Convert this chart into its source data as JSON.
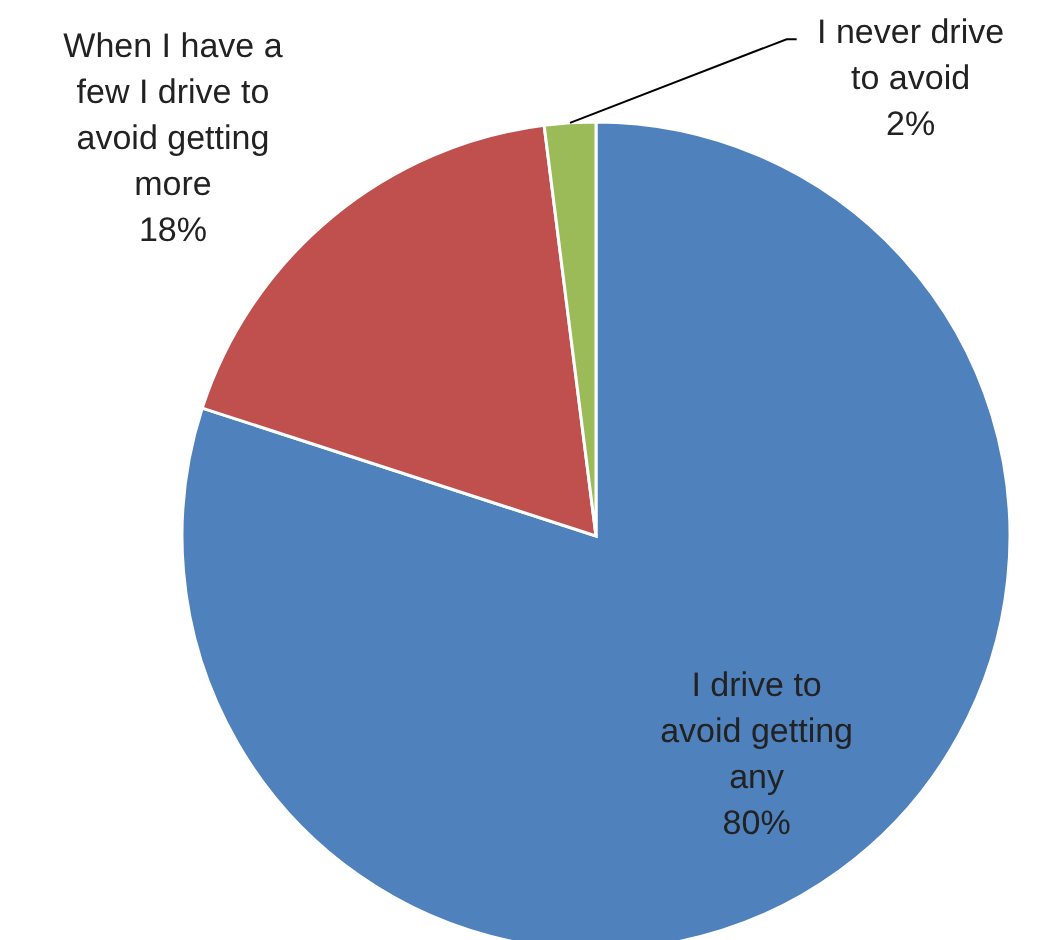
{
  "chart_data": {
    "type": "pie",
    "categories": [
      "I drive to avoid getting any",
      "When I have a few I drive to avoid getting more",
      "I never drive to avoid"
    ],
    "values": [
      80,
      18,
      2
    ],
    "colors": [
      "#4f81bd",
      "#c0504d",
      "#9bbb59"
    ],
    "value_labels": [
      "80%",
      "18%",
      "2%"
    ]
  }
}
